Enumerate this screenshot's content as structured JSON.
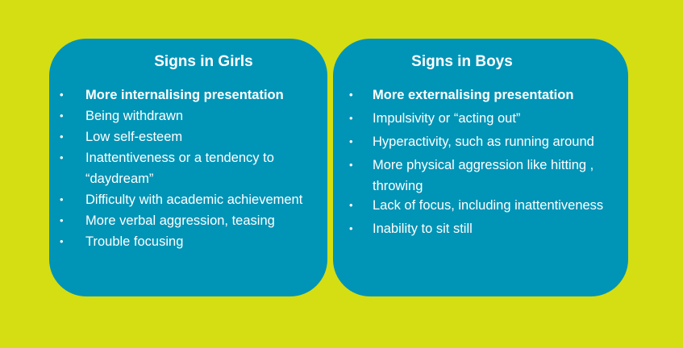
{
  "girls": {
    "title": "Signs in Girls",
    "items": [
      "More internalising presentation",
      "Being withdrawn",
      "Low self-esteem",
      "Inattentiveness or a tendency to “daydream”",
      "Difficulty with academic achievement",
      "More verbal aggression, teasing",
      "Trouble focusing"
    ]
  },
  "boys": {
    "title": "Signs in Boys",
    "items": [
      "More externalising presentation",
      "Impulsivity or “acting out”",
      "Hyperactivity, such as running around",
      "More physical aggression like hitting , throwing",
      "Lack of focus, including inattentiveness",
      "Inability to sit still"
    ]
  },
  "bullet_glyph": "•",
  "colors": {
    "background": "#d4de13",
    "card": "#0094b7",
    "text": "#ffffff"
  }
}
